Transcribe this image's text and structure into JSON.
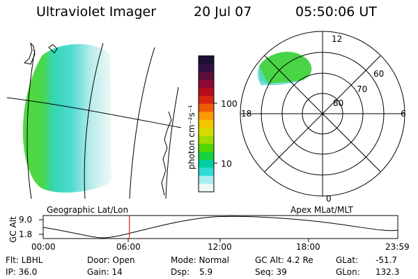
{
  "header": {
    "title": "Ultraviolet Imager",
    "date": "20 Jul 07",
    "time": "05:50:06 UT"
  },
  "colorbar": {
    "unit_label": "photon cm⁻²s⁻¹",
    "tick_labels": [
      "100",
      "10"
    ],
    "colors_top_to_bottom": [
      "#1b1033",
      "#2e1143",
      "#5a0f3a",
      "#8a0a35",
      "#b50d1e",
      "#d82412",
      "#ee5a08",
      "#fb9a06",
      "#f4c600",
      "#d8dc00",
      "#9fdc00",
      "#55d600",
      "#18d23c",
      "#00cfa0",
      "#30dcd8",
      "#a8ecec",
      "#eef8f8"
    ]
  },
  "left_panel": {
    "label": "Geographic Lat/Lon"
  },
  "right_panel": {
    "label": "Apex MLat/MLT",
    "mlt_labels": {
      "top": "12",
      "left": "18",
      "right": "6",
      "bottom": "0"
    },
    "lat_labels": [
      "60",
      "70",
      "80"
    ]
  },
  "timeline": {
    "ylabel": "GC Alt",
    "yticks": [
      "9.0",
      "1.8"
    ],
    "xticks": [
      "00:00",
      "06:00",
      "12:00",
      "18:00",
      "23:59"
    ],
    "marker_fraction": 0.2431
  },
  "info": {
    "flt": "Flt: LBHL",
    "ip": "IP: 36.0",
    "door": "Door: Open",
    "gain": "Gain: 14",
    "mode": "Mode: Normal",
    "dsp_label": "Dsp:",
    "dsp_value": "5.9",
    "gcalt": "GC Alt: 4.2 Re",
    "seq": "Seq: 39",
    "glat_label": "GLat:",
    "glat_value": "-51.7",
    "glon_label": "GLon:",
    "glon_value": "132.3"
  },
  "colors": {
    "marker": "#e02020",
    "aurora_green": "#3fd23c",
    "aurora_cyan": "#34d8cf"
  }
}
